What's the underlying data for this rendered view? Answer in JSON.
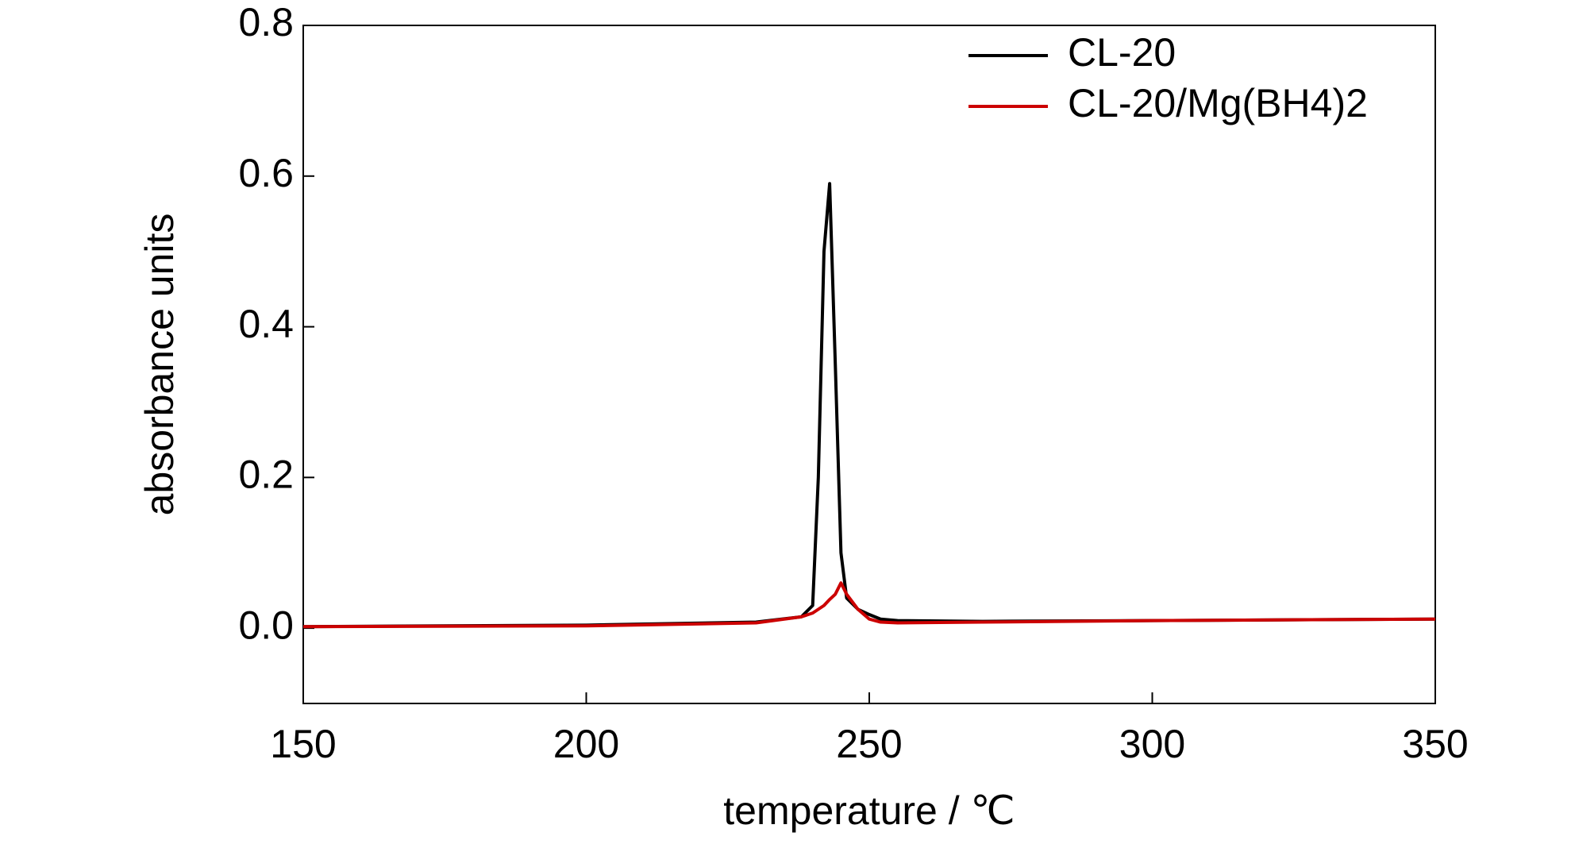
{
  "chart_data": {
    "type": "line",
    "xlabel": "temperature / ℃",
    "ylabel": "absorbance units",
    "x": [
      150,
      200,
      230,
      238,
      240,
      241,
      242,
      243,
      244,
      245,
      246,
      248,
      250,
      252,
      255,
      270,
      300,
      350
    ],
    "series": [
      {
        "name": "CL-20",
        "color": "#000000",
        "values": [
          0.002,
          0.004,
          0.008,
          0.015,
          0.03,
          0.2,
          0.5,
          0.59,
          0.35,
          0.1,
          0.04,
          0.025,
          0.018,
          0.012,
          0.01,
          0.009,
          0.01,
          0.012
        ]
      },
      {
        "name": "CL-20/Mg(BH4)2",
        "color": "#cc0000",
        "values": [
          0.002,
          0.003,
          0.007,
          0.015,
          0.02,
          0.025,
          0.03,
          0.038,
          0.045,
          0.06,
          0.045,
          0.025,
          0.012,
          0.008,
          0.007,
          0.008,
          0.01,
          0.012
        ]
      }
    ],
    "xlim": [
      150,
      350
    ],
    "xticks": [
      150,
      200,
      250,
      300,
      350
    ],
    "ylim": [
      -0.1,
      0.8
    ],
    "yticks": [
      {
        "value": 0,
        "label": "0.0"
      },
      0.2,
      0.4,
      0.6,
      0.8
    ],
    "legend": "top-right"
  }
}
